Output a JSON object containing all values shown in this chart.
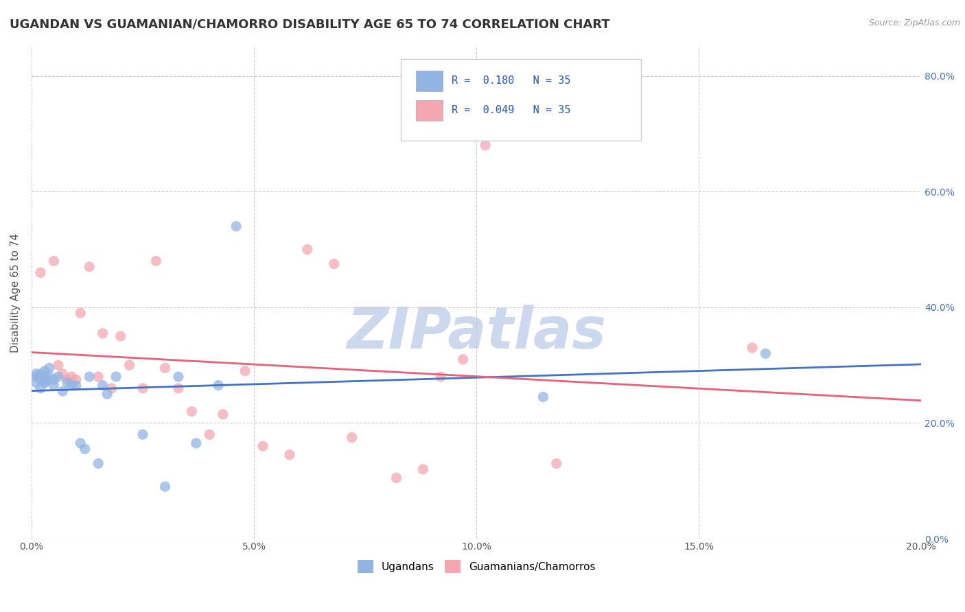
{
  "title": "UGANDAN VS GUAMANIAN/CHAMORRO DISABILITY AGE 65 TO 74 CORRELATION CHART",
  "source": "Source: ZipAtlas.com",
  "ylabel": "Disability Age 65 to 74",
  "xlim": [
    0.0,
    0.2
  ],
  "ylim": [
    0.0,
    0.85
  ],
  "xticks": [
    0.0,
    0.05,
    0.1,
    0.15,
    0.2
  ],
  "yticks": [
    0.0,
    0.2,
    0.4,
    0.6,
    0.8
  ],
  "ugandan_color": "#92b4e3",
  "guamanian_color": "#f4a7b0",
  "ugandan_line_color": "#4472c4",
  "guamanian_line_color": "#e8607a",
  "background_color": "#ffffff",
  "grid_color": "#cccccc",
  "title_fontsize": 13,
  "axis_label_fontsize": 11,
  "tick_fontsize": 10,
  "watermark_color": "#ccd8ee",
  "watermark_fontsize": 60,
  "ugandan_x": [
    0.001,
    0.001,
    0.001,
    0.002,
    0.002,
    0.002,
    0.002,
    0.003,
    0.003,
    0.003,
    0.003,
    0.004,
    0.004,
    0.005,
    0.005,
    0.006,
    0.007,
    0.008,
    0.009,
    0.01,
    0.011,
    0.012,
    0.013,
    0.015,
    0.016,
    0.017,
    0.019,
    0.025,
    0.03,
    0.033,
    0.037,
    0.042,
    0.046,
    0.115,
    0.165
  ],
  "ugandan_y": [
    0.27,
    0.28,
    0.285,
    0.275,
    0.28,
    0.285,
    0.26,
    0.275,
    0.27,
    0.29,
    0.27,
    0.295,
    0.28,
    0.275,
    0.265,
    0.28,
    0.255,
    0.27,
    0.265,
    0.265,
    0.165,
    0.155,
    0.28,
    0.13,
    0.265,
    0.25,
    0.28,
    0.18,
    0.09,
    0.28,
    0.165,
    0.265,
    0.54,
    0.245,
    0.32
  ],
  "guamanian_x": [
    0.002,
    0.003,
    0.005,
    0.006,
    0.007,
    0.008,
    0.009,
    0.01,
    0.011,
    0.013,
    0.015,
    0.016,
    0.018,
    0.02,
    0.022,
    0.025,
    0.028,
    0.03,
    0.033,
    0.036,
    0.04,
    0.043,
    0.048,
    0.052,
    0.058,
    0.062,
    0.068,
    0.072,
    0.082,
    0.088,
    0.092,
    0.097,
    0.102,
    0.118,
    0.162
  ],
  "guamanian_y": [
    0.46,
    0.28,
    0.48,
    0.3,
    0.285,
    0.275,
    0.28,
    0.275,
    0.39,
    0.47,
    0.28,
    0.355,
    0.26,
    0.35,
    0.3,
    0.26,
    0.48,
    0.295,
    0.26,
    0.22,
    0.18,
    0.215,
    0.29,
    0.16,
    0.145,
    0.5,
    0.475,
    0.175,
    0.105,
    0.12,
    0.28,
    0.31,
    0.68,
    0.13,
    0.33
  ]
}
